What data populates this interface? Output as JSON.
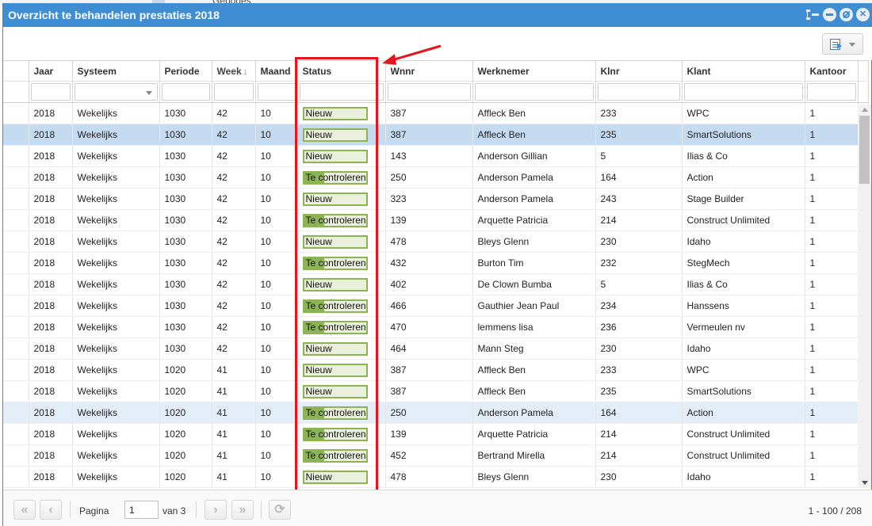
{
  "background": {
    "partial_text": "Gebodes"
  },
  "window": {
    "title": "Overzicht te behandelen prestaties 2018",
    "tools": [
      "grid-tool-icon",
      "minimize-icon",
      "restore-icon",
      "close-icon"
    ]
  },
  "grid": {
    "columns": [
      {
        "key": "jaar",
        "label": "Jaar"
      },
      {
        "key": "systeem",
        "label": "Systeem"
      },
      {
        "key": "periode",
        "label": "Periode"
      },
      {
        "key": "week",
        "label": "Week",
        "sorted": "desc"
      },
      {
        "key": "maand",
        "label": "Maand"
      },
      {
        "key": "status",
        "label": "Status"
      },
      {
        "key": "wnnr",
        "label": "Wnnr"
      },
      {
        "key": "werknemer",
        "label": "Werknemer"
      },
      {
        "key": "klnr",
        "label": "Klnr"
      },
      {
        "key": "klant",
        "label": "Klant"
      },
      {
        "key": "kantoor",
        "label": "Kantoor"
      }
    ],
    "status_colors": {
      "border": "#8db454",
      "track": "#eaf0dc"
    },
    "rows": [
      {
        "jaar": "2018",
        "systeem": "Wekelijks",
        "periode": "1030",
        "week": "42",
        "maand": "10",
        "status": "Nieuw",
        "progress": 0,
        "wnnr": "387",
        "werknemer": "Affleck Ben",
        "klnr": "233",
        "klant": "WPC",
        "kantoor": "1"
      },
      {
        "jaar": "2018",
        "systeem": "Wekelijks",
        "periode": "1030",
        "week": "42",
        "maand": "10",
        "status": "Nieuw",
        "progress": 0,
        "wnnr": "387",
        "werknemer": "Affleck Ben",
        "klnr": "235",
        "klant": "SmartSolutions",
        "kantoor": "1"
      },
      {
        "jaar": "2018",
        "systeem": "Wekelijks",
        "periode": "1030",
        "week": "42",
        "maand": "10",
        "status": "Nieuw",
        "progress": 0,
        "wnnr": "143",
        "werknemer": "Anderson Gillian",
        "klnr": "5",
        "klant": "Ilias & Co",
        "kantoor": "1"
      },
      {
        "jaar": "2018",
        "systeem": "Wekelijks",
        "periode": "1030",
        "week": "42",
        "maand": "10",
        "status": "Te controleren",
        "progress": 0.33,
        "wnnr": "250",
        "werknemer": "Anderson Pamela",
        "klnr": "164",
        "klant": "Action",
        "kantoor": "1"
      },
      {
        "jaar": "2018",
        "systeem": "Wekelijks",
        "periode": "1030",
        "week": "42",
        "maand": "10",
        "status": "Nieuw",
        "progress": 0,
        "wnnr": "323",
        "werknemer": "Anderson Pamela",
        "klnr": "243",
        "klant": "Stage Builder",
        "kantoor": "1"
      },
      {
        "jaar": "2018",
        "systeem": "Wekelijks",
        "periode": "1030",
        "week": "42",
        "maand": "10",
        "status": "Te controleren",
        "progress": 0.33,
        "wnnr": "139",
        "werknemer": "Arquette Patricia",
        "klnr": "214",
        "klant": "Construct Unlimited",
        "kantoor": "1"
      },
      {
        "jaar": "2018",
        "systeem": "Wekelijks",
        "periode": "1030",
        "week": "42",
        "maand": "10",
        "status": "Nieuw",
        "progress": 0,
        "wnnr": "478",
        "werknemer": "Bleys Glenn",
        "klnr": "230",
        "klant": "Idaho",
        "kantoor": "1"
      },
      {
        "jaar": "2018",
        "systeem": "Wekelijks",
        "periode": "1030",
        "week": "42",
        "maand": "10",
        "status": "Te controleren",
        "progress": 0.33,
        "wnnr": "432",
        "werknemer": "Burton Tim",
        "klnr": "232",
        "klant": "StegMech",
        "kantoor": "1"
      },
      {
        "jaar": "2018",
        "systeem": "Wekelijks",
        "periode": "1030",
        "week": "42",
        "maand": "10",
        "status": "Nieuw",
        "progress": 0,
        "wnnr": "402",
        "werknemer": "De Clown Bumba",
        "klnr": "5",
        "klant": "Ilias & Co",
        "kantoor": "1"
      },
      {
        "jaar": "2018",
        "systeem": "Wekelijks",
        "periode": "1030",
        "week": "42",
        "maand": "10",
        "status": "Te controleren",
        "progress": 0.33,
        "wnnr": "466",
        "werknemer": "Gauthier Jean Paul",
        "klnr": "234",
        "klant": "Hanssens",
        "kantoor": "1"
      },
      {
        "jaar": "2018",
        "systeem": "Wekelijks",
        "periode": "1030",
        "week": "42",
        "maand": "10",
        "status": "Te controleren",
        "progress": 0.33,
        "wnnr": "470",
        "werknemer": "lemmens lisa",
        "klnr": "236",
        "klant": "Vermeulen nv",
        "kantoor": "1"
      },
      {
        "jaar": "2018",
        "systeem": "Wekelijks",
        "periode": "1030",
        "week": "42",
        "maand": "10",
        "status": "Nieuw",
        "progress": 0,
        "wnnr": "464",
        "werknemer": "Mann Steg",
        "klnr": "230",
        "klant": "Idaho",
        "kantoor": "1"
      },
      {
        "jaar": "2018",
        "systeem": "Wekelijks",
        "periode": "1020",
        "week": "41",
        "maand": "10",
        "status": "Nieuw",
        "progress": 0,
        "wnnr": "387",
        "werknemer": "Affleck Ben",
        "klnr": "233",
        "klant": "WPC",
        "kantoor": "1"
      },
      {
        "jaar": "2018",
        "systeem": "Wekelijks",
        "periode": "1020",
        "week": "41",
        "maand": "10",
        "status": "Nieuw",
        "progress": 0,
        "wnnr": "387",
        "werknemer": "Affleck Ben",
        "klnr": "235",
        "klant": "SmartSolutions",
        "kantoor": "1"
      },
      {
        "jaar": "2018",
        "systeem": "Wekelijks",
        "periode": "1020",
        "week": "41",
        "maand": "10",
        "status": "Te controleren",
        "progress": 0.33,
        "wnnr": "250",
        "werknemer": "Anderson Pamela",
        "klnr": "164",
        "klant": "Action",
        "kantoor": "1"
      },
      {
        "jaar": "2018",
        "systeem": "Wekelijks",
        "periode": "1020",
        "week": "41",
        "maand": "10",
        "status": "Te controleren",
        "progress": 0.33,
        "wnnr": "139",
        "werknemer": "Arquette Patricia",
        "klnr": "214",
        "klant": "Construct Unlimited",
        "kantoor": "1"
      },
      {
        "jaar": "2018",
        "systeem": "Wekelijks",
        "periode": "1020",
        "week": "41",
        "maand": "10",
        "status": "Te controleren",
        "progress": 0.33,
        "wnnr": "452",
        "werknemer": "Bertrand Mirella",
        "klnr": "214",
        "klant": "Construct Unlimited",
        "kantoor": "1"
      },
      {
        "jaar": "2018",
        "systeem": "Wekelijks",
        "periode": "1020",
        "week": "41",
        "maand": "10",
        "status": "Nieuw",
        "progress": 0,
        "wnnr": "478",
        "werknemer": "Bleys Glenn",
        "klnr": "230",
        "klant": "Idaho",
        "kantoor": "1"
      }
    ],
    "selected_row": 1,
    "hover_row": 14
  },
  "annotation": {
    "color": "#e8141b"
  },
  "pager": {
    "first": "«",
    "prev": "‹",
    "page_label": "Pagina",
    "page_value": "1",
    "of_label": "van 3",
    "next": "›",
    "last": "»",
    "count_text": "1 - 100 / 208"
  }
}
